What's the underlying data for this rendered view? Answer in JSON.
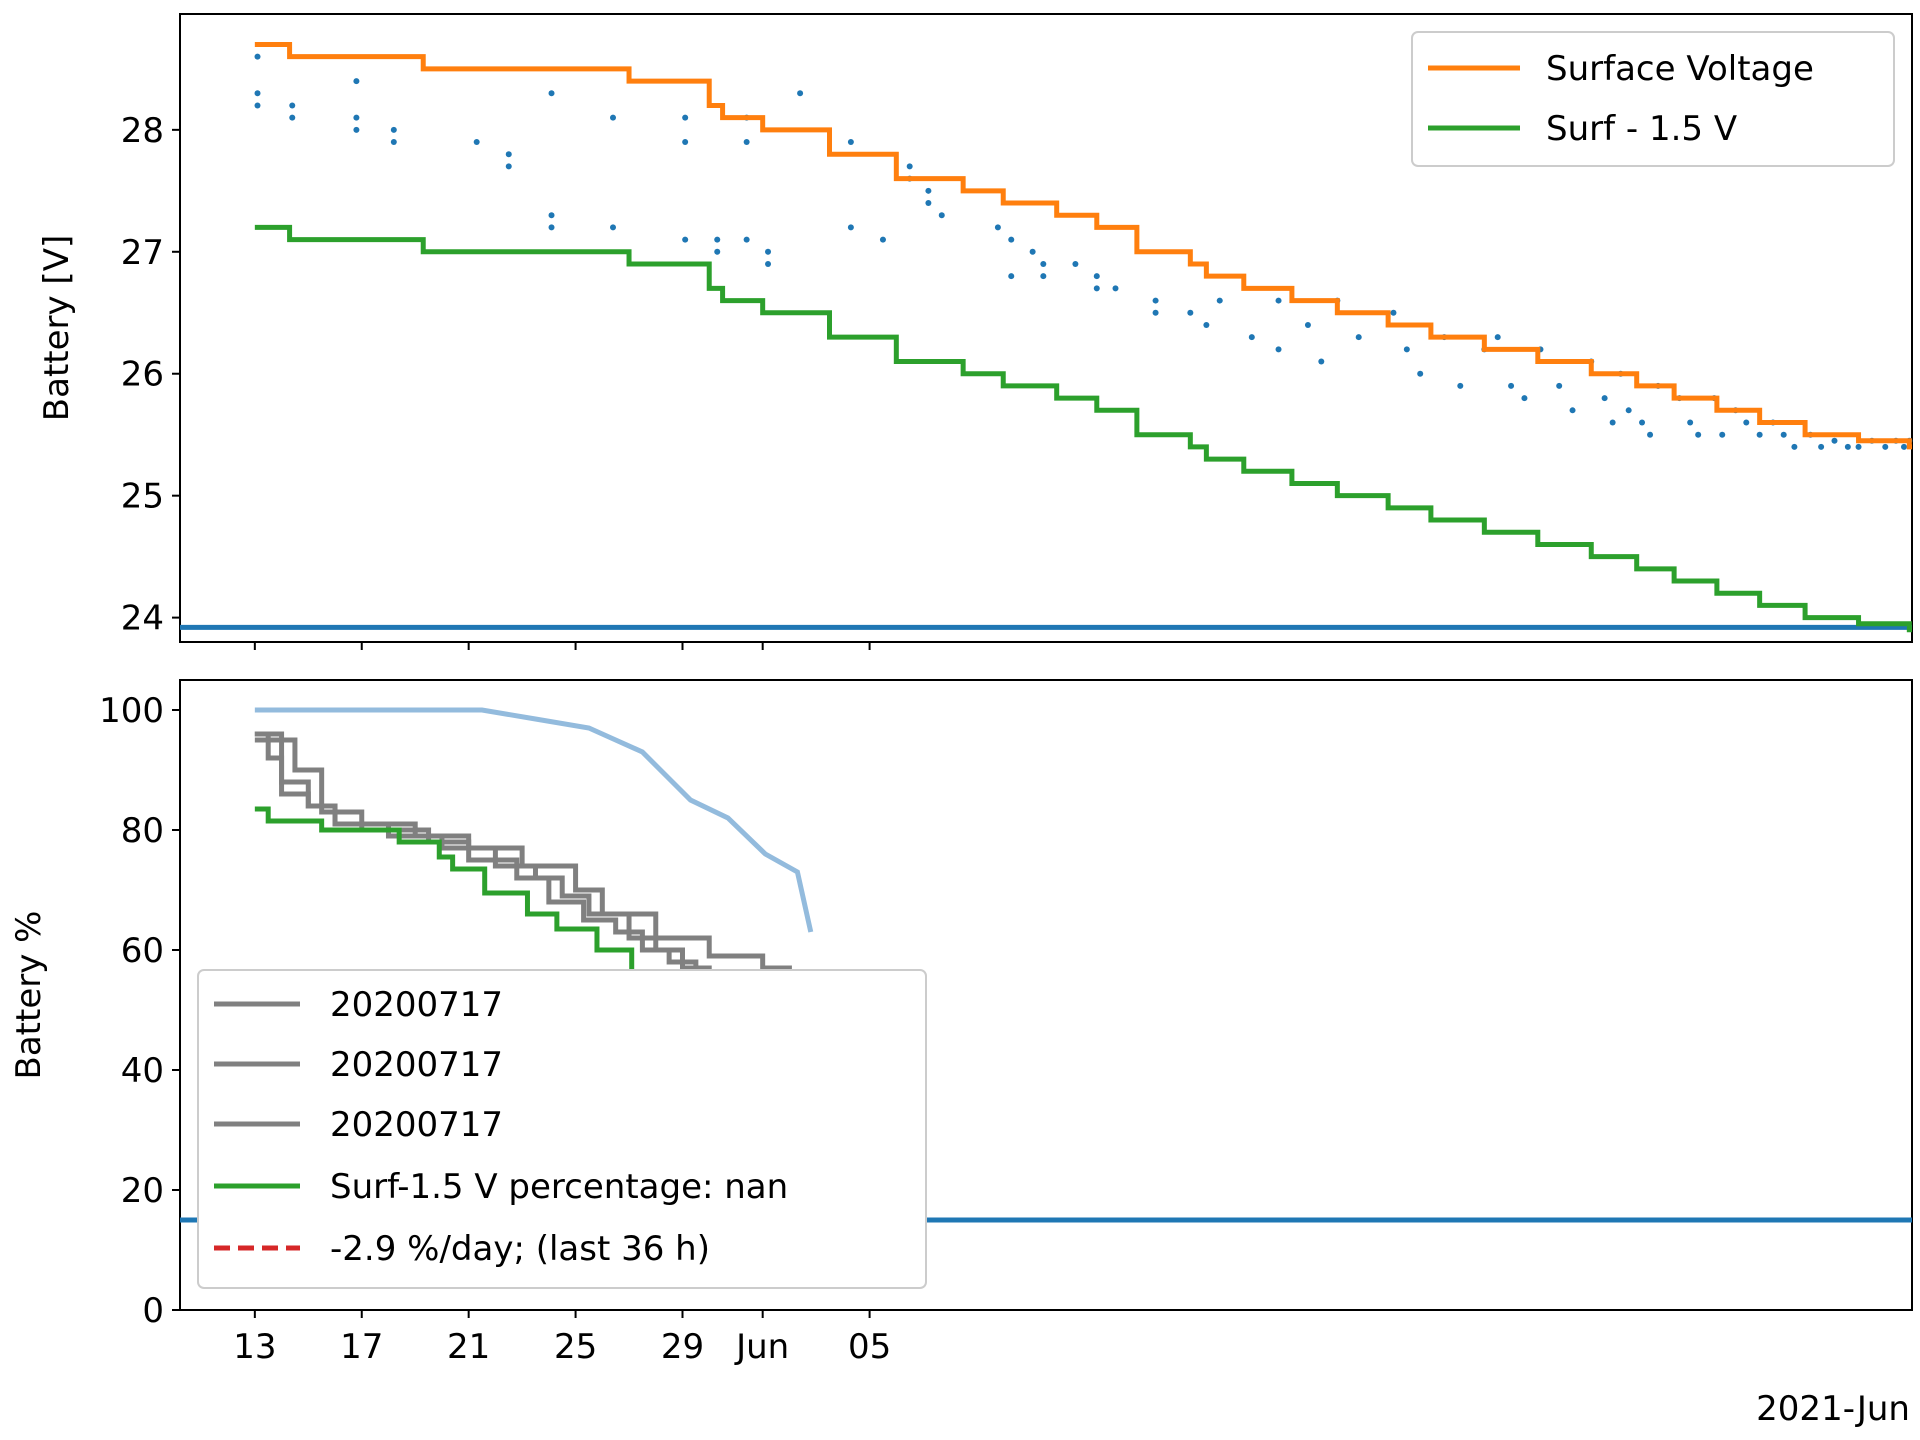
{
  "colors": {
    "surface": "#ff7f0e",
    "surf_minus": "#2ca02c",
    "points": "#1f77b4",
    "threshold": "#1f77b4",
    "reference": "#808080",
    "light_blue": "#93bbdd",
    "trend": "#d62728"
  },
  "chart_data": [
    {
      "type": "line",
      "ylabel": "Battery [V]",
      "ylim": [
        23.8,
        28.95
      ],
      "yticks": [
        24,
        25,
        26,
        27,
        28
      ],
      "xlim": [
        -2.8,
        62
      ],
      "legend_position": "top-right",
      "threshold": 23.92,
      "series": [
        {
          "name": "Surface Voltage",
          "color": "#ff7f0e",
          "x": [
            0,
            1.3,
            1.3,
            6.3,
            6.3,
            14,
            14,
            17,
            17,
            17.5,
            17.5,
            19,
            19,
            21.5,
            21.5,
            24,
            24,
            26.5,
            26.5,
            28,
            28,
            30,
            30,
            31.5,
            31.5,
            33,
            33,
            35,
            35,
            35.6,
            35.6,
            37,
            37,
            38.8,
            38.8,
            40.5,
            40.5,
            42.4,
            42.4,
            44,
            44,
            46,
            46,
            48,
            48,
            50,
            50,
            51.7,
            51.7,
            53.1,
            53.1,
            54.7,
            54.7,
            56.3,
            56.3,
            58,
            58,
            60,
            60,
            61.9,
            61.9,
            62
          ],
          "y": [
            28.7,
            28.7,
            28.6,
            28.6,
            28.5,
            28.5,
            28.4,
            28.4,
            28.2,
            28.2,
            28.1,
            28.1,
            28.0,
            28.0,
            27.8,
            27.8,
            27.6,
            27.6,
            27.5,
            27.5,
            27.4,
            27.4,
            27.3,
            27.3,
            27.2,
            27.2,
            27.0,
            27.0,
            26.9,
            26.9,
            26.8,
            26.8,
            26.7,
            26.7,
            26.6,
            26.6,
            26.5,
            26.5,
            26.4,
            26.4,
            26.3,
            26.3,
            26.2,
            26.2,
            26.1,
            26.1,
            26.0,
            26.0,
            25.9,
            25.9,
            25.8,
            25.8,
            25.7,
            25.7,
            25.6,
            25.6,
            25.5,
            25.5,
            25.45,
            25.45,
            25.4,
            25.4
          ]
        },
        {
          "name": "Surf - 1.5 V",
          "color": "#2ca02c",
          "x": [
            0,
            1.3,
            1.3,
            6.3,
            6.3,
            14,
            14,
            17,
            17,
            17.5,
            17.5,
            19,
            19,
            21.5,
            21.5,
            24,
            24,
            26.5,
            26.5,
            28,
            28,
            30,
            30,
            31.5,
            31.5,
            33,
            33,
            35,
            35,
            35.6,
            35.6,
            37,
            37,
            38.8,
            38.8,
            40.5,
            40.5,
            42.4,
            42.4,
            44,
            44,
            46,
            46,
            48,
            48,
            50,
            50,
            51.7,
            51.7,
            53.1,
            53.1,
            54.7,
            54.7,
            56.3,
            56.3,
            58,
            58,
            60,
            60,
            61.9,
            61.9,
            62
          ],
          "y": [
            27.2,
            27.2,
            27.1,
            27.1,
            27.0,
            27.0,
            26.9,
            26.9,
            26.7,
            26.7,
            26.6,
            26.6,
            26.5,
            26.5,
            26.3,
            26.3,
            26.1,
            26.1,
            26.0,
            26.0,
            25.9,
            25.9,
            25.8,
            25.8,
            25.7,
            25.7,
            25.5,
            25.5,
            25.4,
            25.4,
            25.3,
            25.3,
            25.2,
            25.2,
            25.1,
            25.1,
            25.0,
            25.0,
            24.9,
            24.9,
            24.8,
            24.8,
            24.7,
            24.7,
            24.6,
            24.6,
            24.5,
            24.5,
            24.4,
            24.4,
            24.3,
            24.3,
            24.2,
            24.2,
            24.1,
            24.1,
            24.0,
            24.0,
            23.95,
            23.95,
            23.9,
            23.9
          ]
        }
      ],
      "scatter": {
        "x": [
          0.1,
          0.1,
          0.1,
          1.4,
          1.4,
          3.8,
          3.8,
          3.8,
          5.2,
          5.2,
          8.3,
          9.5,
          9.5,
          11.1,
          11.1,
          11.1,
          13.4,
          13.4,
          16.1,
          16.1,
          16.1,
          17.3,
          17.3,
          18.4,
          18.4,
          18.4,
          19.2,
          19.2,
          20.4,
          22.3,
          22.3,
          23.5,
          24.5,
          24.5,
          25.2,
          25.2,
          25.7,
          27.8,
          28.3,
          28.3,
          29.1,
          29.5,
          29.5,
          30.7,
          31.5,
          31.5,
          32.2,
          33.7,
          33.7,
          35.0,
          35.6,
          36.1,
          37.3,
          38.3,
          38.3,
          39.4,
          39.9,
          40.5,
          41.3,
          42.6,
          43.1,
          43.6,
          44.5,
          45.1,
          46.0,
          46.5,
          47.0,
          47.5,
          48.1,
          48.8,
          49.3,
          50.0,
          50.5,
          50.8,
          51.1,
          51.4,
          51.9,
          52.2,
          52.5,
          53.3,
          53.7,
          54.0,
          54.6,
          54.9,
          55.4,
          55.8,
          56.3,
          56.8,
          57.2,
          57.6,
          58.2,
          58.6,
          59.1,
          59.6,
          60.0,
          60.5,
          61.0,
          61.4,
          61.7,
          61.9
        ],
        "y": [
          28.6,
          28.3,
          28.2,
          28.2,
          28.1,
          28.4,
          28.1,
          28.0,
          28.0,
          27.9,
          27.9,
          27.8,
          27.7,
          28.3,
          27.3,
          27.2,
          28.1,
          27.2,
          28.1,
          27.9,
          27.1,
          27.1,
          27.0,
          28.1,
          27.9,
          27.1,
          27.0,
          26.9,
          28.3,
          27.9,
          27.2,
          27.1,
          27.7,
          27.6,
          27.5,
          27.4,
          27.3,
          27.2,
          27.1,
          26.8,
          27.0,
          26.9,
          26.8,
          26.9,
          26.8,
          26.7,
          26.7,
          26.6,
          26.5,
          26.5,
          26.4,
          26.6,
          26.3,
          26.6,
          26.2,
          26.4,
          26.1,
          26.6,
          26.3,
          26.5,
          26.2,
          26.0,
          26.3,
          25.9,
          26.2,
          26.3,
          25.9,
          25.8,
          26.2,
          25.9,
          25.7,
          26.1,
          25.8,
          25.6,
          26.0,
          25.7,
          25.6,
          25.5,
          25.9,
          25.8,
          25.6,
          25.5,
          25.8,
          25.5,
          25.7,
          25.6,
          25.5,
          25.6,
          25.5,
          25.4,
          25.5,
          25.4,
          25.45,
          25.4,
          25.4,
          25.45,
          25.4,
          25.45,
          25.4,
          25.45
        ]
      }
    },
    {
      "type": "line",
      "ylabel": "Battery %",
      "ylim": [
        0,
        105
      ],
      "yticks": [
        0,
        20,
        40,
        60,
        80,
        100
      ],
      "xlim": [
        -2.8,
        62
      ],
      "xticks": [
        {
          "x": 0,
          "label": "13"
        },
        {
          "x": 4,
          "label": "17"
        },
        {
          "x": 8,
          "label": "21"
        },
        {
          "x": 12,
          "label": "25"
        },
        {
          "x": 16,
          "label": "29"
        },
        {
          "x": 19,
          "label": "Jun"
        },
        {
          "x": 23,
          "label": "05"
        }
      ],
      "xlabel_suffix": "2021-Jun",
      "legend_position": "lower-left",
      "threshold": 15,
      "series": [
        {
          "name": "20200717",
          "color": "#808080",
          "x": [
            0,
            0.5,
            0.5,
            1,
            1,
            2,
            2,
            3,
            3,
            5,
            5,
            8,
            8,
            10,
            10,
            12,
            12,
            13,
            13,
            15,
            15,
            17,
            17,
            19,
            19,
            20,
            20,
            20.5,
            20.5,
            21,
            21,
            22,
            22,
            23.2,
            23.2,
            25
          ],
          "y": [
            96,
            96,
            92,
            92,
            86,
            86,
            84,
            84,
            81,
            81,
            79,
            79,
            77,
            77,
            74,
            74,
            70,
            70,
            66,
            66,
            62,
            62,
            59,
            59,
            57,
            57,
            43,
            43,
            42,
            42,
            40,
            40,
            38,
            38,
            36,
            36
          ]
        },
        {
          "name": "20200717",
          "color": "#808080",
          "x": [
            0,
            1,
            1,
            2,
            2,
            3,
            3,
            6,
            6,
            7,
            7,
            9,
            9,
            10.5,
            10.5,
            11.5,
            11.5,
            12.5,
            12.5,
            14,
            14,
            15,
            15,
            16,
            16,
            17,
            17,
            18,
            18,
            19,
            19,
            20,
            20,
            21,
            21,
            22,
            22,
            23
          ],
          "y": [
            96,
            96,
            88,
            88,
            84,
            84,
            81,
            81,
            79,
            79,
            77,
            77,
            74,
            74,
            72,
            72,
            69,
            69,
            66,
            66,
            62,
            62,
            60,
            60,
            57,
            57,
            52,
            52,
            48,
            48,
            45,
            45,
            42,
            42,
            40,
            40,
            37,
            37
          ]
        },
        {
          "name": "20200717",
          "color": "#808080",
          "x": [
            0,
            1.5,
            1.5,
            2.5,
            2.5,
            4,
            4,
            6.5,
            6.5,
            8,
            8,
            9.8,
            9.8,
            11,
            11,
            12.3,
            12.3,
            13.5,
            13.5,
            14.5,
            14.5,
            15.5,
            15.5,
            16.5,
            16.5,
            17.5,
            17.5,
            18.5,
            18.5,
            19.5,
            19.5,
            20.3,
            20.3,
            21.2,
            21.2,
            22.2,
            22.2,
            23
          ],
          "y": [
            95,
            95,
            90,
            90,
            83,
            83,
            80,
            80,
            78,
            78,
            75,
            75,
            72,
            72,
            68,
            68,
            65,
            65,
            63,
            63,
            60,
            60,
            58,
            58,
            55,
            55,
            50,
            50,
            47,
            47,
            44,
            44,
            41,
            41,
            38,
            38,
            36,
            36
          ]
        },
        {
          "name": "Surf-1.5 V percentage: nan",
          "color": "#2ca02c",
          "x": [
            0,
            0.5,
            0.5,
            2.5,
            2.5,
            5.4,
            5.4,
            6.9,
            6.9,
            7.4,
            7.4,
            8.6,
            8.6,
            10.2,
            10.2,
            11.3,
            11.3,
            12.8,
            12.8,
            14.1,
            14.1,
            15.4,
            15.4,
            16.6,
            16.6,
            17.8,
            17.8,
            19,
            19,
            19.6,
            19.6,
            20.5,
            20.5,
            20.8
          ],
          "y": [
            83.5,
            83.5,
            81.5,
            81.5,
            80,
            80,
            78,
            78,
            75.5,
            75.5,
            73.5,
            73.5,
            69.5,
            69.5,
            66,
            66,
            63.5,
            63.5,
            60,
            60,
            55,
            55,
            52,
            52,
            49,
            49,
            45,
            45,
            44,
            44,
            42,
            42,
            41,
            38
          ]
        },
        {
          "name": "-2.9 %/day; (last 36 h)",
          "color": "#d62728",
          "dashed": true,
          "x": [
            19.1,
            20.8
          ],
          "y": [
            44,
            39.5
          ]
        }
      ],
      "unlabeled_series": {
        "color": "#93bbdd",
        "x": [
          0,
          8.5,
          10.5,
          12.5,
          13.5,
          14.5,
          15.4,
          16.3,
          17.7,
          19.1,
          20.3,
          20.8
        ],
        "y": [
          100,
          100,
          98.5,
          97,
          95,
          93,
          89,
          85,
          82,
          76,
          73,
          63
        ]
      }
    }
  ]
}
